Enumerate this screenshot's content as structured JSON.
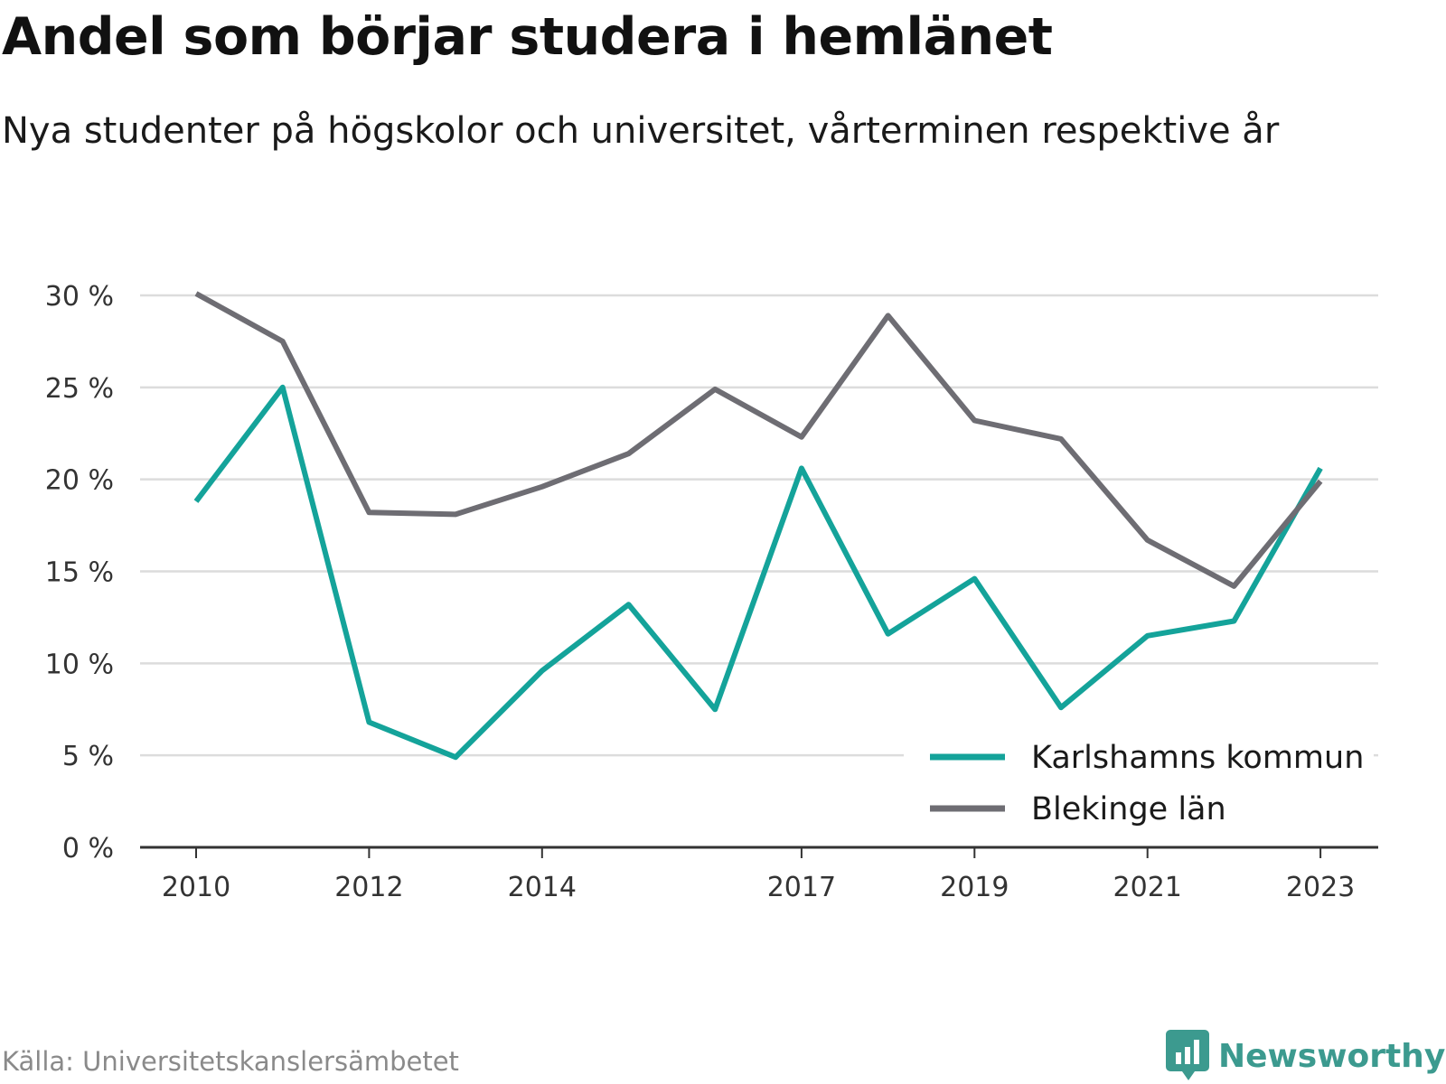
{
  "chart_data": {
    "type": "line",
    "title": "Andel som börjar studera i hemlänet",
    "subtitle": "Nya studenter på högskolor och universitet, vårterminen respektive år",
    "x": [
      2010,
      2011,
      2012,
      2013,
      2014,
      2015,
      2016,
      2017,
      2018,
      2019,
      2020,
      2021,
      2022,
      2023
    ],
    "x_tick_labels": [
      "2010",
      "2012",
      "2014",
      "2017",
      "2019",
      "2021",
      "2023"
    ],
    "y_tick_labels": [
      "0 %",
      "5 %",
      "10 %",
      "15 %",
      "20 %",
      "25 %",
      "30 %"
    ],
    "ylim": [
      0,
      30
    ],
    "grid": true,
    "legend_position": "bottom-right",
    "series": [
      {
        "name": "Karlshamns kommun",
        "color": "#14a39a",
        "values": [
          18.8,
          25.0,
          6.8,
          4.9,
          9.6,
          13.2,
          7.5,
          20.6,
          11.6,
          14.6,
          7.6,
          11.5,
          12.3,
          20.6
        ]
      },
      {
        "name": "Blekinge län",
        "color": "#6e6d73",
        "values": [
          30.1,
          27.5,
          18.2,
          18.1,
          19.6,
          21.4,
          24.9,
          22.3,
          28.9,
          23.2,
          22.2,
          16.7,
          14.2,
          19.9
        ]
      }
    ]
  },
  "footer": {
    "source": "Källa: Universitetskanslersämbetet",
    "brand": "Newsworthy"
  },
  "colors": {
    "brand": "#3c9a8f",
    "grid": "#dcdcdc",
    "axis": "#333333"
  },
  "icons": {
    "brand_logo": "bar-chart-bubble-icon"
  }
}
